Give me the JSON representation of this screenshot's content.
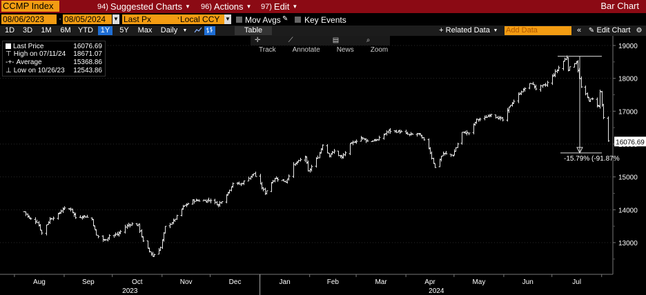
{
  "topbar": {
    "ticker": "CCMP Index",
    "menu": [
      {
        "num": "94)",
        "label": "Suggested Charts"
      },
      {
        "num": "96)",
        "label": "Actions"
      },
      {
        "num": "97)",
        "label": "Edit"
      }
    ],
    "title": "Bar Chart"
  },
  "controls": {
    "start_date": "08/06/2023",
    "end_date": "08/05/2024",
    "price_field": "Last Px",
    "currency": "Local CCY",
    "mov_avgs": "Mov Avgs",
    "key_events": "Key Events"
  },
  "ranges": {
    "items": [
      "1D",
      "3D",
      "1M",
      "6M",
      "YTD",
      "1Y",
      "5Y",
      "Max"
    ],
    "active": "1Y",
    "period": "Daily",
    "table": "Table",
    "related_data": "+ Related Data",
    "add_data_placeholder": "Add Data",
    "edit_chart": "Edit Chart"
  },
  "tools": [
    "Track",
    "Annotate",
    "News",
    "Zoom"
  ],
  "legend": {
    "last_price_label": "Last Price",
    "last_price_value": "16076.69",
    "high_label": "High on 07/11/24",
    "high_value": "18671.07",
    "average_label": "Average",
    "average_value": "15368.86",
    "low_label": "Low on 10/26/23",
    "low_value": "12543.86"
  },
  "annotation": {
    "last_price_tag": "16076.69",
    "drawdown_text": "-15.79% (-91.87%"
  },
  "chart_data": {
    "type": "bar",
    "series": [
      {
        "name": "CCMP Index",
        "values_note": "daily OHLC bars"
      }
    ],
    "ylim": [
      12000,
      19200
    ],
    "y_ticks": [
      13000,
      14000,
      15000,
      16000,
      17000,
      18000,
      19000
    ],
    "x_months": [
      "Aug",
      "Sep",
      "Oct",
      "Nov",
      "Dec",
      "Jan",
      "Feb",
      "Mar",
      "Apr",
      "May",
      "Jun",
      "Jul"
    ],
    "x_years": [
      "2023",
      "2024"
    ],
    "close_path": [
      [
        "2023-08-07",
        13940
      ],
      [
        "2023-08-10",
        13740
      ],
      [
        "2023-08-15",
        13630
      ],
      [
        "2023-08-18",
        13290
      ],
      [
        "2023-08-23",
        13720
      ],
      [
        "2023-08-28",
        13850
      ],
      [
        "2023-08-31",
        14030
      ],
      [
        "2023-09-05",
        14020
      ],
      [
        "2023-09-08",
        13760
      ],
      [
        "2023-09-13",
        13810
      ],
      [
        "2023-09-18",
        13710
      ],
      [
        "2023-09-21",
        13220
      ],
      [
        "2023-09-26",
        13060
      ],
      [
        "2023-09-29",
        13220
      ],
      [
        "2023-10-04",
        13240
      ],
      [
        "2023-10-09",
        13480
      ],
      [
        "2023-10-12",
        13570
      ],
      [
        "2023-10-17",
        13530
      ],
      [
        "2023-10-20",
        13030
      ],
      [
        "2023-10-26",
        12590
      ],
      [
        "2023-10-31",
        12850
      ],
      [
        "2023-11-03",
        13480
      ],
      [
        "2023-11-08",
        13650
      ],
      [
        "2023-11-14",
        14090
      ],
      [
        "2023-11-20",
        14280
      ],
      [
        "2023-11-28",
        14280
      ],
      [
        "2023-12-01",
        14300
      ],
      [
        "2023-12-06",
        14150
      ],
      [
        "2023-12-12",
        14530
      ],
      [
        "2023-12-15",
        14810
      ],
      [
        "2023-12-20",
        14780
      ],
      [
        "2023-12-28",
        15100
      ],
      [
        "2024-01-04",
        14510
      ],
      [
        "2024-01-10",
        14970
      ],
      [
        "2024-01-17",
        14850
      ],
      [
        "2024-01-22",
        15360
      ],
      [
        "2024-01-29",
        15630
      ],
      [
        "2024-01-31",
        15160
      ],
      [
        "2024-02-06",
        15610
      ],
      [
        "2024-02-09",
        15990
      ],
      [
        "2024-02-13",
        15660
      ],
      [
        "2024-02-16",
        15780
      ],
      [
        "2024-02-21",
        15580
      ],
      [
        "2024-02-26",
        15980
      ],
      [
        "2024-03-04",
        16200
      ],
      [
        "2024-03-08",
        16090
      ],
      [
        "2024-03-14",
        16130
      ],
      [
        "2024-03-21",
        16400
      ],
      [
        "2024-03-28",
        16380
      ],
      [
        "2024-04-03",
        16280
      ],
      [
        "2024-04-09",
        16310
      ],
      [
        "2024-04-15",
        15890
      ],
      [
        "2024-04-19",
        15280
      ],
      [
        "2024-04-24",
        15710
      ],
      [
        "2024-04-30",
        15660
      ],
      [
        "2024-05-06",
        16350
      ],
      [
        "2024-05-10",
        16340
      ],
      [
        "2024-05-15",
        16740
      ],
      [
        "2024-05-20",
        16790
      ],
      [
        "2024-05-24",
        16920
      ],
      [
        "2024-05-31",
        16730
      ],
      [
        "2024-06-05",
        17190
      ],
      [
        "2024-06-12",
        17610
      ],
      [
        "2024-06-18",
        17860
      ],
      [
        "2024-06-21",
        17690
      ],
      [
        "2024-06-27",
        17800
      ],
      [
        "2024-07-03",
        18190
      ],
      [
        "2024-07-10",
        18650
      ],
      [
        "2024-07-11",
        18280
      ],
      [
        "2024-07-16",
        18510
      ],
      [
        "2024-07-19",
        17730
      ],
      [
        "2024-07-24",
        17340
      ],
      [
        "2024-07-26",
        17360
      ],
      [
        "2024-07-30",
        17150
      ],
      [
        "2024-07-31",
        17600
      ],
      [
        "2024-08-01",
        17190
      ],
      [
        "2024-08-02",
        16780
      ],
      [
        "2024-08-05",
        16080
      ]
    ]
  }
}
